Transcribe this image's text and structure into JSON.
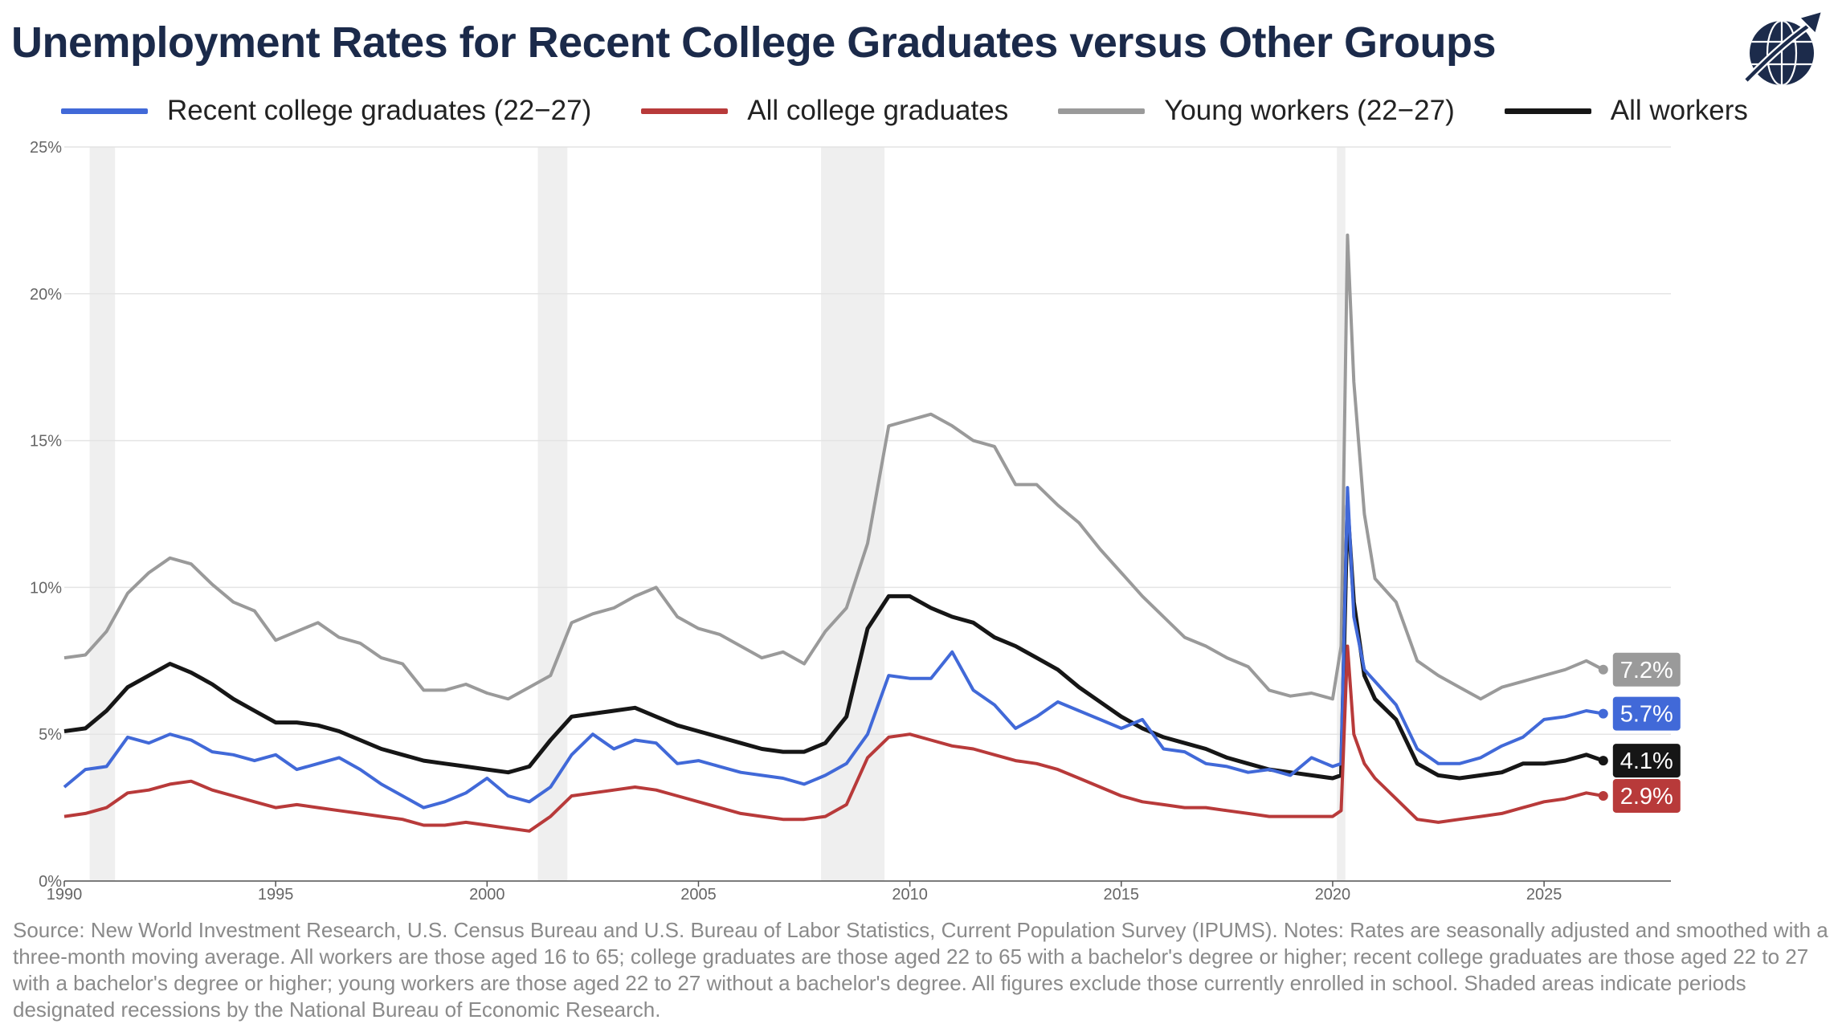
{
  "title": "Unemployment Rates for Recent College Graduates versus Other Groups",
  "logo_icon": "globe-arrow-logo-icon",
  "legend": [
    {
      "label": "Recent college graduates (22−27)",
      "color": "#4169d8"
    },
    {
      "label": "All college graduates",
      "color": "#b83a3a"
    },
    {
      "label": "Young workers (22−27)",
      "color": "#9a9a9a"
    },
    {
      "label": "All workers",
      "color": "#161616"
    }
  ],
  "source": "Source: New World Investment Research, U.S. Census Bureau and U.S. Bureau of Labor Statistics, Current Population Survey (IPUMS). Notes: Rates are seasonally adjusted and smoothed with a three-month moving average. All workers are those aged 16 to 65; college graduates are those aged 22 to 65 with a bachelor's degree or higher; recent college graduates are those aged 22 to 27 with a bachelor's degree or higher; young workers are those aged 22 to 27 without a bachelor's degree. All figures exclude those currently enrolled in school. Shaded areas indicate periods designated recessions by the National Bureau of Economic Research.",
  "chart_data": {
    "type": "line",
    "title": "Unemployment Rates for Recent College Graduates versus Other Groups",
    "xlabel": "",
    "ylabel": "",
    "xlim": [
      1990,
      2028
    ],
    "ylim": [
      0,
      25
    ],
    "x_ticks": [
      1990,
      1995,
      2000,
      2005,
      2010,
      2015,
      2020,
      2025
    ],
    "y_ticks": [
      0,
      5,
      10,
      15,
      20,
      25
    ],
    "y_tick_labels": [
      "0%",
      "5%",
      "10%",
      "15%",
      "20%",
      "25%"
    ],
    "grid": "horizontal",
    "legend_position": "top",
    "recessions": [
      [
        1990.6,
        1991.2
      ],
      [
        2001.2,
        2001.9
      ],
      [
        2007.9,
        2009.4
      ],
      [
        2020.1,
        2020.3
      ]
    ],
    "series": [
      {
        "name": "Young workers (22−27)",
        "color": "#9a9a9a",
        "end_label": "7.2%",
        "x": [
          1990.0,
          1990.5,
          1991.0,
          1991.5,
          1992.0,
          1992.5,
          1993.0,
          1993.5,
          1994.0,
          1994.5,
          1995.0,
          1995.5,
          1996.0,
          1996.5,
          1997.0,
          1997.5,
          1998.0,
          1998.5,
          1999.0,
          1999.5,
          2000.0,
          2000.5,
          2001.0,
          2001.5,
          2002.0,
          2002.5,
          2003.0,
          2003.5,
          2004.0,
          2004.5,
          2005.0,
          2005.5,
          2006.0,
          2006.5,
          2007.0,
          2007.5,
          2008.0,
          2008.5,
          2009.0,
          2009.5,
          2010.0,
          2010.5,
          2011.0,
          2011.5,
          2012.0,
          2012.5,
          2013.0,
          2013.5,
          2014.0,
          2014.5,
          2015.0,
          2015.5,
          2016.0,
          2016.5,
          2017.0,
          2017.5,
          2018.0,
          2018.5,
          2019.0,
          2019.5,
          2020.0,
          2020.2,
          2020.35,
          2020.5,
          2020.75,
          2021.0,
          2021.5,
          2022.0,
          2022.5,
          2023.0,
          2023.5,
          2024.0,
          2024.5,
          2025.0,
          2025.5,
          2026.0,
          2026.4
        ],
        "y": [
          7.6,
          7.7,
          8.5,
          9.8,
          10.5,
          11.0,
          10.8,
          10.1,
          9.5,
          9.2,
          8.2,
          8.5,
          8.8,
          8.3,
          8.1,
          7.6,
          7.4,
          6.5,
          6.5,
          6.7,
          6.4,
          6.2,
          6.6,
          7.0,
          8.8,
          9.1,
          9.3,
          9.7,
          10.0,
          9.0,
          8.6,
          8.4,
          8.0,
          7.6,
          7.8,
          7.4,
          8.5,
          9.3,
          11.5,
          15.5,
          15.7,
          15.9,
          15.5,
          15.0,
          14.8,
          13.5,
          13.5,
          12.8,
          12.2,
          11.3,
          10.5,
          9.7,
          9.0,
          8.3,
          8.0,
          7.6,
          7.3,
          6.5,
          6.3,
          6.4,
          6.2,
          8.0,
          22.0,
          17.0,
          12.5,
          10.3,
          9.5,
          7.5,
          7.0,
          6.6,
          6.2,
          6.6,
          6.8,
          7.0,
          7.2,
          7.5,
          7.2
        ]
      },
      {
        "name": "All workers",
        "color": "#161616",
        "end_label": "4.1%",
        "x": [
          1990.0,
          1990.5,
          1991.0,
          1991.5,
          1992.0,
          1992.5,
          1993.0,
          1993.5,
          1994.0,
          1994.5,
          1995.0,
          1995.5,
          1996.0,
          1996.5,
          1997.0,
          1997.5,
          1998.0,
          1998.5,
          1999.0,
          1999.5,
          2000.0,
          2000.5,
          2001.0,
          2001.5,
          2002.0,
          2002.5,
          2003.0,
          2003.5,
          2004.0,
          2004.5,
          2005.0,
          2005.5,
          2006.0,
          2006.5,
          2007.0,
          2007.5,
          2008.0,
          2008.5,
          2009.0,
          2009.5,
          2010.0,
          2010.5,
          2011.0,
          2011.5,
          2012.0,
          2012.5,
          2013.0,
          2013.5,
          2014.0,
          2014.5,
          2015.0,
          2015.5,
          2016.0,
          2016.5,
          2017.0,
          2017.5,
          2018.0,
          2018.5,
          2019.0,
          2019.5,
          2020.0,
          2020.2,
          2020.35,
          2020.5,
          2020.75,
          2021.0,
          2021.5,
          2022.0,
          2022.5,
          2023.0,
          2023.5,
          2024.0,
          2024.5,
          2025.0,
          2025.5,
          2026.0,
          2026.4
        ],
        "y": [
          5.1,
          5.2,
          5.8,
          6.6,
          7.0,
          7.4,
          7.1,
          6.7,
          6.2,
          5.8,
          5.4,
          5.4,
          5.3,
          5.1,
          4.8,
          4.5,
          4.3,
          4.1,
          4.0,
          3.9,
          3.8,
          3.7,
          3.9,
          4.8,
          5.6,
          5.7,
          5.8,
          5.9,
          5.6,
          5.3,
          5.1,
          4.9,
          4.7,
          4.5,
          4.4,
          4.4,
          4.7,
          5.6,
          8.6,
          9.7,
          9.7,
          9.3,
          9.0,
          8.8,
          8.3,
          8.0,
          7.6,
          7.2,
          6.6,
          6.1,
          5.6,
          5.2,
          4.9,
          4.7,
          4.5,
          4.2,
          4.0,
          3.8,
          3.7,
          3.6,
          3.5,
          3.6,
          12.8,
          9.5,
          7.0,
          6.2,
          5.5,
          4.0,
          3.6,
          3.5,
          3.6,
          3.7,
          4.0,
          4.0,
          4.1,
          4.3,
          4.1
        ]
      },
      {
        "name": "Recent college graduates (22−27)",
        "color": "#4169d8",
        "end_label": "5.7%",
        "x": [
          1990.0,
          1990.5,
          1991.0,
          1991.5,
          1992.0,
          1992.5,
          1993.0,
          1993.5,
          1994.0,
          1994.5,
          1995.0,
          1995.5,
          1996.0,
          1996.5,
          1997.0,
          1997.5,
          1998.0,
          1998.5,
          1999.0,
          1999.5,
          2000.0,
          2000.5,
          2001.0,
          2001.5,
          2002.0,
          2002.5,
          2003.0,
          2003.5,
          2004.0,
          2004.5,
          2005.0,
          2005.5,
          2006.0,
          2006.5,
          2007.0,
          2007.5,
          2008.0,
          2008.5,
          2009.0,
          2009.5,
          2010.0,
          2010.5,
          2011.0,
          2011.5,
          2012.0,
          2012.5,
          2013.0,
          2013.5,
          2014.0,
          2014.5,
          2015.0,
          2015.5,
          2016.0,
          2016.5,
          2017.0,
          2017.5,
          2018.0,
          2018.5,
          2019.0,
          2019.5,
          2020.0,
          2020.2,
          2020.35,
          2020.5,
          2020.75,
          2021.0,
          2021.5,
          2022.0,
          2022.5,
          2023.0,
          2023.5,
          2024.0,
          2024.5,
          2025.0,
          2025.5,
          2026.0,
          2026.4
        ],
        "y": [
          3.2,
          3.8,
          3.9,
          4.9,
          4.7,
          5.0,
          4.8,
          4.4,
          4.3,
          4.1,
          4.3,
          3.8,
          4.0,
          4.2,
          3.8,
          3.3,
          2.9,
          2.5,
          2.7,
          3.0,
          3.5,
          2.9,
          2.7,
          3.2,
          4.3,
          5.0,
          4.5,
          4.8,
          4.7,
          4.0,
          4.1,
          3.9,
          3.7,
          3.6,
          3.5,
          3.3,
          3.6,
          4.0,
          5.0,
          7.0,
          6.9,
          6.9,
          7.8,
          6.5,
          6.0,
          5.2,
          5.6,
          6.1,
          5.8,
          5.5,
          5.2,
          5.5,
          4.5,
          4.4,
          4.0,
          3.9,
          3.7,
          3.8,
          3.6,
          4.2,
          3.9,
          4.0,
          13.4,
          9.0,
          7.2,
          6.8,
          6.0,
          4.5,
          4.0,
          4.0,
          4.2,
          4.6,
          4.9,
          5.5,
          5.6,
          5.8,
          5.7
        ]
      },
      {
        "name": "All college graduates",
        "color": "#b83a3a",
        "end_label": "2.9%",
        "x": [
          1990.0,
          1990.5,
          1991.0,
          1991.5,
          1992.0,
          1992.5,
          1993.0,
          1993.5,
          1994.0,
          1994.5,
          1995.0,
          1995.5,
          1996.0,
          1996.5,
          1997.0,
          1997.5,
          1998.0,
          1998.5,
          1999.0,
          1999.5,
          2000.0,
          2000.5,
          2001.0,
          2001.5,
          2002.0,
          2002.5,
          2003.0,
          2003.5,
          2004.0,
          2004.5,
          2005.0,
          2005.5,
          2006.0,
          2006.5,
          2007.0,
          2007.5,
          2008.0,
          2008.5,
          2009.0,
          2009.5,
          2010.0,
          2010.5,
          2011.0,
          2011.5,
          2012.0,
          2012.5,
          2013.0,
          2013.5,
          2014.0,
          2014.5,
          2015.0,
          2015.5,
          2016.0,
          2016.5,
          2017.0,
          2017.5,
          2018.0,
          2018.5,
          2019.0,
          2019.5,
          2020.0,
          2020.2,
          2020.35,
          2020.5,
          2020.75,
          2021.0,
          2021.5,
          2022.0,
          2022.5,
          2023.0,
          2023.5,
          2024.0,
          2024.5,
          2025.0,
          2025.5,
          2026.0,
          2026.4
        ],
        "y": [
          2.2,
          2.3,
          2.5,
          3.0,
          3.1,
          3.3,
          3.4,
          3.1,
          2.9,
          2.7,
          2.5,
          2.6,
          2.5,
          2.4,
          2.3,
          2.2,
          2.1,
          1.9,
          1.9,
          2.0,
          1.9,
          1.8,
          1.7,
          2.2,
          2.9,
          3.0,
          3.1,
          3.2,
          3.1,
          2.9,
          2.7,
          2.5,
          2.3,
          2.2,
          2.1,
          2.1,
          2.2,
          2.6,
          4.2,
          4.9,
          5.0,
          4.8,
          4.6,
          4.5,
          4.3,
          4.1,
          4.0,
          3.8,
          3.5,
          3.2,
          2.9,
          2.7,
          2.6,
          2.5,
          2.5,
          2.4,
          2.3,
          2.2,
          2.2,
          2.2,
          2.2,
          2.4,
          8.0,
          5.0,
          4.0,
          3.5,
          2.8,
          2.1,
          2.0,
          2.1,
          2.2,
          2.3,
          2.5,
          2.7,
          2.8,
          3.0,
          2.9
        ]
      }
    ]
  }
}
